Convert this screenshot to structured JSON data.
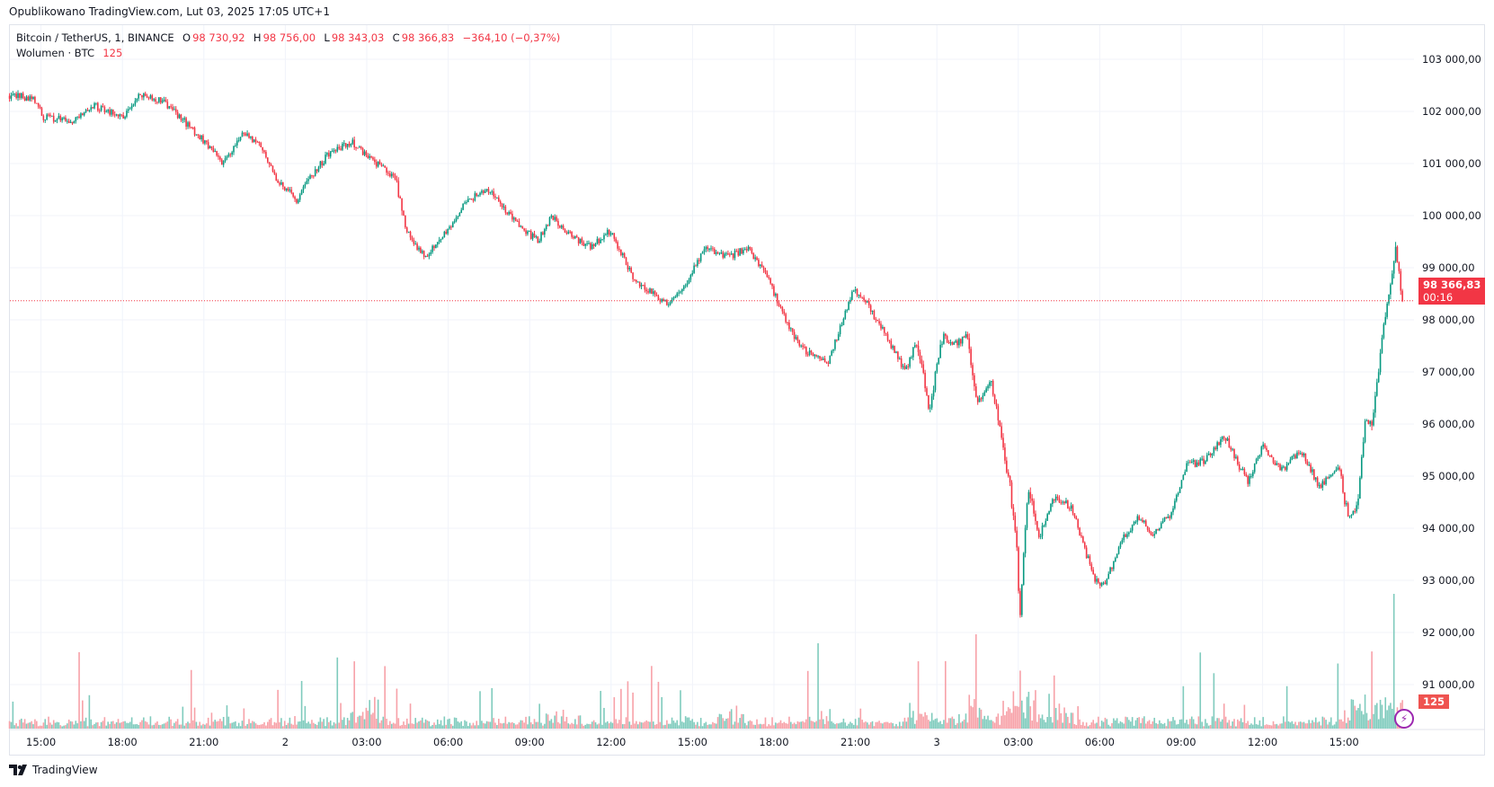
{
  "published": "Opublikowano TradingView.com, Lut 03, 2025 17:05 UTC+1",
  "legend": {
    "symbol": "Bitcoin / TetherUS, 1, BINANCE",
    "o_label": "O",
    "o": "98 730,92",
    "h_label": "H",
    "h": "98 756,00",
    "l_label": "L",
    "l": "98 343,03",
    "c_label": "C",
    "c": "98 366,83",
    "change": "−364,10 (−0,37%)",
    "volume_label": "Wolumen · BTC",
    "volume": "125"
  },
  "price_badge": {
    "price": "98 366,83",
    "countdown": "00:16"
  },
  "volume_badge": "125",
  "brand": "TradingView",
  "colors": {
    "up": "#089981",
    "down": "#f23645",
    "up_vol": "#7fcbbd",
    "down_vol": "#f7a1a8",
    "grid": "#f0f3fa"
  },
  "chart_data": {
    "type": "candlestick",
    "title": "Bitcoin / TetherUS, 1, BINANCE",
    "interval": "1 minute",
    "ylim": [
      90300,
      103600
    ],
    "y_ticks": [
      "103 000,00",
      "102 000,00",
      "101 000,00",
      "100 000,00",
      "99 000,00",
      "98 000,00",
      "97 000,00",
      "96 000,00",
      "95 000,00",
      "94 000,00",
      "93 000,00",
      "92 000,00",
      "91 000,00"
    ],
    "y_tick_values": [
      103000,
      102000,
      101000,
      100000,
      99000,
      98000,
      97000,
      96000,
      95000,
      94000,
      93000,
      92000,
      91000
    ],
    "x_ticks": [
      "15:00",
      "18:00",
      "21:00",
      "2",
      "03:00",
      "06:00",
      "09:00",
      "12:00",
      "15:00",
      "18:00",
      "21:00",
      "3",
      "03:00",
      "06:00",
      "09:00",
      "12:00",
      "15:00"
    ],
    "x_tick_hours": [
      0,
      3,
      6,
      9,
      12,
      15,
      18,
      21,
      24,
      27,
      30,
      33,
      36,
      39,
      42,
      45,
      48
    ],
    "x_unit": "hours since Feb 1 15:00",
    "last_price": 98366.83,
    "price_path": [
      [
        -1.16,
        102300
      ],
      [
        -0.28,
        102250
      ],
      [
        0.07,
        101900
      ],
      [
        1.12,
        101800
      ],
      [
        2.0,
        102100
      ],
      [
        3.05,
        101900
      ],
      [
        3.58,
        102300
      ],
      [
        4.46,
        102200
      ],
      [
        5.51,
        101700
      ],
      [
        6.74,
        101000
      ],
      [
        7.44,
        101600
      ],
      [
        8.14,
        101300
      ],
      [
        8.67,
        100700
      ],
      [
        9.44,
        100300
      ],
      [
        9.9,
        100700
      ],
      [
        10.6,
        101200
      ],
      [
        11.48,
        101400
      ],
      [
        12.36,
        101000
      ],
      [
        13.06,
        100700
      ],
      [
        13.41,
        99800
      ],
      [
        14.11,
        99200
      ],
      [
        14.99,
        99700
      ],
      [
        15.69,
        100300
      ],
      [
        16.57,
        100500
      ],
      [
        17.44,
        99900
      ],
      [
        18.32,
        99500
      ],
      [
        18.78,
        100000
      ],
      [
        19.55,
        99600
      ],
      [
        20.25,
        99400
      ],
      [
        20.95,
        99700
      ],
      [
        21.83,
        98800
      ],
      [
        23.06,
        98300
      ],
      [
        23.76,
        98700
      ],
      [
        24.46,
        99400
      ],
      [
        25.34,
        99200
      ],
      [
        26.04,
        99400
      ],
      [
        26.75,
        98800
      ],
      [
        27.62,
        97800
      ],
      [
        28.15,
        97400
      ],
      [
        29.03,
        97200
      ],
      [
        29.91,
        98600
      ],
      [
        30.43,
        98300
      ],
      [
        31.13,
        97700
      ],
      [
        31.84,
        97000
      ],
      [
        32.26,
        97600
      ],
      [
        32.71,
        96300
      ],
      [
        33.24,
        97700
      ],
      [
        33.59,
        97500
      ],
      [
        34.12,
        97700
      ],
      [
        34.47,
        96400
      ],
      [
        34.99,
        96800
      ],
      [
        35.28,
        96000
      ],
      [
        35.7,
        94800
      ],
      [
        35.98,
        93400
      ],
      [
        36.05,
        92000
      ],
      [
        36.22,
        93800
      ],
      [
        36.4,
        94800
      ],
      [
        36.75,
        93800
      ],
      [
        37.28,
        94600
      ],
      [
        37.98,
        94400
      ],
      [
        38.5,
        93500
      ],
      [
        38.85,
        93000
      ],
      [
        39.2,
        92900
      ],
      [
        39.73,
        93700
      ],
      [
        40.44,
        94200
      ],
      [
        40.96,
        93900
      ],
      [
        41.66,
        94300
      ],
      [
        42.19,
        95200
      ],
      [
        42.89,
        95300
      ],
      [
        43.59,
        95800
      ],
      [
        44.12,
        95200
      ],
      [
        44.47,
        94900
      ],
      [
        44.99,
        95600
      ],
      [
        45.69,
        95100
      ],
      [
        46.4,
        95500
      ],
      [
        47.1,
        94800
      ],
      [
        47.8,
        95200
      ],
      [
        48.15,
        94200
      ],
      [
        48.5,
        94400
      ],
      [
        48.75,
        96000
      ],
      [
        49.03,
        96000
      ],
      [
        49.38,
        97500
      ],
      [
        49.66,
        98600
      ],
      [
        49.9,
        99300
      ],
      [
        50.15,
        98366.83
      ]
    ],
    "volume_hotspots_hours": [
      [
        12.1,
        3
      ],
      [
        19.2,
        2
      ],
      [
        25.5,
        1.6
      ],
      [
        28.7,
        2.4
      ],
      [
        32.4,
        2.2
      ],
      [
        34.5,
        3
      ],
      [
        36.0,
        5
      ],
      [
        36.5,
        3.5
      ],
      [
        37.5,
        2
      ],
      [
        48.6,
        3.5
      ],
      [
        49.7,
        4
      ]
    ]
  }
}
